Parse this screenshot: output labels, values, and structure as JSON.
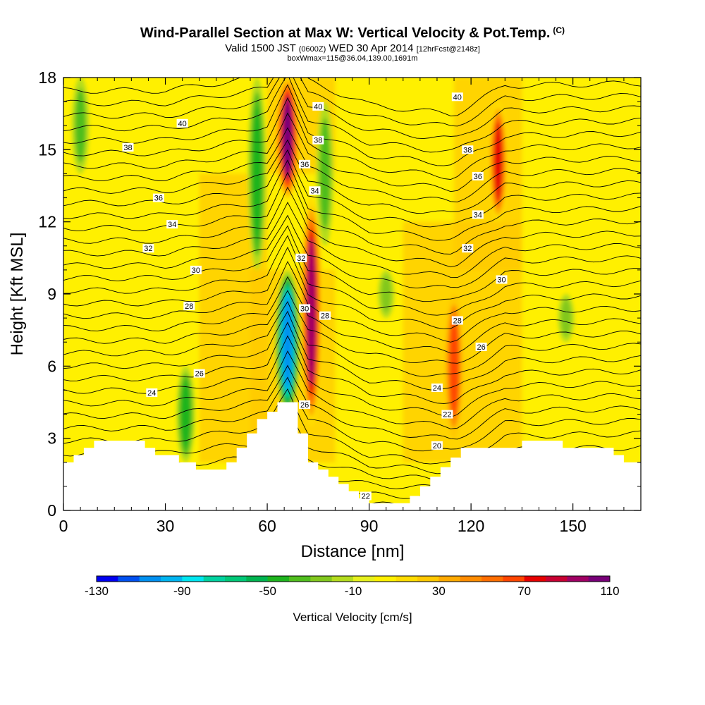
{
  "header": {
    "title": "Wind-Parallel Section at Max W: Vertical Velocity & Pot.Temp.",
    "copyright": "(C)",
    "valid_prefix": "Valid 1500 JST",
    "valid_utc": "(0600Z)",
    "valid_date": "WED 30 Apr 2014",
    "forecast": "[12hrFcst@2148z]",
    "box_info": "boxWmax=115@36.04,139.00,1691m"
  },
  "chart_data": {
    "type": "heatmap",
    "xlabel": "Distance [nm]",
    "ylabel": "Height [Kft MSL]",
    "xlim": [
      0,
      170
    ],
    "ylim": [
      0,
      18
    ],
    "x_ticks": [
      0,
      30,
      60,
      90,
      120,
      150
    ],
    "y_ticks": [
      0,
      3,
      6,
      9,
      12,
      15,
      18
    ],
    "colorbar": {
      "label": "Vertical Velocity [cm/s]",
      "levels": [
        -130,
        -120,
        -110,
        -100,
        -90,
        -80,
        -70,
        -60,
        -50,
        -40,
        -30,
        -20,
        -10,
        0,
        10,
        20,
        30,
        40,
        50,
        60,
        70,
        80,
        90,
        100,
        110
      ],
      "colors": [
        "#0000f0",
        "#0050f0",
        "#0090f0",
        "#00b4f0",
        "#00e6f0",
        "#00d2a0",
        "#00c878",
        "#00b450",
        "#1eb41e",
        "#50be1e",
        "#82c81e",
        "#b4dc1e",
        "#e6f01e",
        "#fff000",
        "#ffdc00",
        "#ffc800",
        "#ffaa00",
        "#ff8c00",
        "#ff6e00",
        "#ff4600",
        "#e60000",
        "#c80032",
        "#a00064",
        "#780078"
      ],
      "tick_labels": [
        -130,
        -90,
        -50,
        -10,
        30,
        70,
        110
      ]
    },
    "vertical_velocity_features": [
      {
        "kind": "updraft",
        "x": 66,
        "y_range": [
          13,
          18
        ],
        "peak_cm_s": 100
      },
      {
        "kind": "updraft",
        "x": 73,
        "y_range": [
          3.5,
          13
        ],
        "peak_cm_s": 90
      },
      {
        "kind": "updraft",
        "x": 128,
        "y_range": [
          12,
          17
        ],
        "peak_cm_s": 70
      },
      {
        "kind": "updraft",
        "x": 115,
        "y_range": [
          3,
          9
        ],
        "peak_cm_s": 60
      },
      {
        "kind": "downdraft",
        "x": 66,
        "y_range": [
          4,
          10
        ],
        "peak_cm_s": -110
      },
      {
        "kind": "downdraft",
        "x": 57,
        "y_range": [
          10,
          18
        ],
        "peak_cm_s": -50
      },
      {
        "kind": "downdraft",
        "x": 77,
        "y_range": [
          11,
          17
        ],
        "peak_cm_s": -40
      },
      {
        "kind": "downdraft",
        "x": 36,
        "y_range": [
          2,
          6
        ],
        "peak_cm_s": -50
      },
      {
        "kind": "downdraft",
        "x": 5,
        "y_range": [
          14,
          18
        ],
        "peak_cm_s": -40
      },
      {
        "kind": "downdraft",
        "x": 95,
        "y_range": [
          8,
          10
        ],
        "peak_cm_s": -30
      },
      {
        "kind": "downdraft",
        "x": 148,
        "y_range": [
          7,
          9
        ],
        "peak_cm_s": -30
      }
    ],
    "theta_contour_labels": [
      {
        "text": "40",
        "x": 35,
        "y": 16.1
      },
      {
        "text": "38",
        "x": 19,
        "y": 15.1
      },
      {
        "text": "36",
        "x": 28,
        "y": 13.0
      },
      {
        "text": "34",
        "x": 32,
        "y": 11.9
      },
      {
        "text": "32",
        "x": 25,
        "y": 10.9
      },
      {
        "text": "30",
        "x": 39,
        "y": 10.0
      },
      {
        "text": "28",
        "x": 37,
        "y": 8.5
      },
      {
        "text": "26",
        "x": 40,
        "y": 5.7
      },
      {
        "text": "24",
        "x": 26,
        "y": 4.9
      },
      {
        "text": "40",
        "x": 75,
        "y": 16.8
      },
      {
        "text": "38",
        "x": 75,
        "y": 15.4
      },
      {
        "text": "36",
        "x": 71,
        "y": 14.4
      },
      {
        "text": "34",
        "x": 74,
        "y": 13.3
      },
      {
        "text": "32",
        "x": 70,
        "y": 10.5
      },
      {
        "text": "30",
        "x": 71,
        "y": 8.4
      },
      {
        "text": "28",
        "x": 77,
        "y": 8.1
      },
      {
        "text": "26",
        "x": 71,
        "y": 4.4
      },
      {
        "text": "22",
        "x": 89,
        "y": 0.6
      },
      {
        "text": "40",
        "x": 116,
        "y": 17.2
      },
      {
        "text": "38",
        "x": 119,
        "y": 15.0
      },
      {
        "text": "36",
        "x": 122,
        "y": 13.9
      },
      {
        "text": "34",
        "x": 122,
        "y": 12.3
      },
      {
        "text": "32",
        "x": 119,
        "y": 10.9
      },
      {
        "text": "30",
        "x": 129,
        "y": 9.6
      },
      {
        "text": "28",
        "x": 116,
        "y": 7.9
      },
      {
        "text": "26",
        "x": 123,
        "y": 6.8
      },
      {
        "text": "24",
        "x": 110,
        "y": 5.1
      },
      {
        "text": "22",
        "x": 113,
        "y": 4.0
      },
      {
        "text": "20",
        "x": 110,
        "y": 2.7
      }
    ],
    "terrain_profile": {
      "x": [
        0,
        3,
        3,
        6,
        6,
        9,
        9,
        12,
        12,
        24,
        24,
        27,
        27,
        30,
        30,
        34,
        34,
        39,
        39,
        42,
        42,
        48,
        48,
        51,
        51,
        54,
        54,
        57,
        57,
        60,
        60,
        63,
        63,
        66,
        66,
        69,
        69,
        72,
        72,
        75,
        75,
        78,
        78,
        81,
        81,
        84,
        84,
        87,
        87,
        90,
        90,
        93,
        93,
        102,
        102,
        105,
        105,
        108,
        108,
        111,
        111,
        114,
        114,
        117,
        117,
        120,
        120,
        135,
        135,
        138,
        138,
        147,
        147,
        150,
        150,
        162,
        162,
        165,
        165,
        170
      ],
      "height_kft": [
        2.0,
        2.0,
        2.3,
        2.3,
        2.6,
        2.6,
        2.9,
        2.9,
        2.9,
        2.9,
        2.6,
        2.6,
        2.3,
        2.3,
        2.3,
        2.3,
        2.0,
        2.0,
        1.7,
        1.7,
        1.7,
        1.7,
        2.0,
        2.0,
        2.6,
        2.6,
        3.2,
        3.2,
        3.8,
        3.8,
        4.1,
        4.1,
        4.5,
        4.5,
        4.5,
        4.5,
        3.2,
        3.2,
        2.0,
        2.0,
        1.7,
        1.7,
        1.4,
        1.4,
        1.1,
        1.1,
        0.8,
        0.8,
        0.5,
        0.5,
        0.3,
        0.3,
        0.3,
        0.3,
        0.6,
        0.6,
        1.0,
        1.0,
        1.4,
        1.4,
        1.8,
        1.8,
        2.2,
        2.2,
        2.6,
        2.6,
        2.6,
        2.6,
        2.9,
        2.9,
        2.9,
        2.9,
        2.6,
        2.6,
        2.6,
        2.6,
        2.3,
        2.3,
        2.0,
        2.0
      ]
    }
  }
}
